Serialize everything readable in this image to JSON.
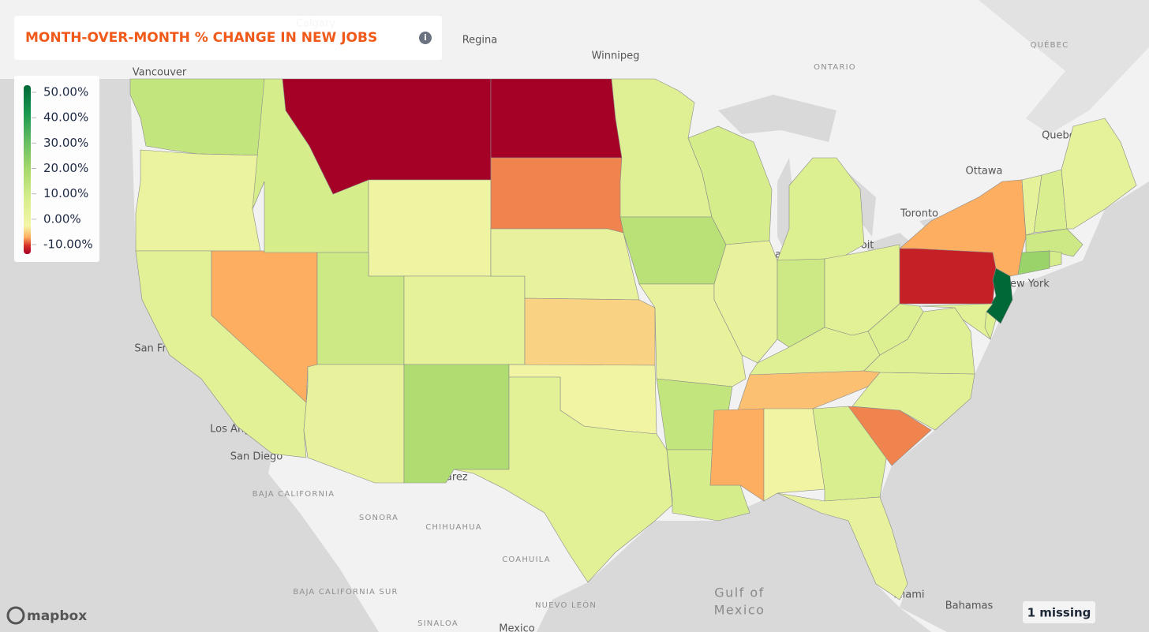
{
  "chart_data": {
    "type": "choropleth",
    "title": "MONTH-OVER-MONTH % CHANGE IN NEW JOBS",
    "values": [
      14,
      3,
      6,
      -4,
      10,
      -12,
      2,
      12,
      5,
      4,
      18,
      -12,
      -5,
      4,
      -2,
      1,
      6,
      7,
      16,
      4,
      14,
      10,
      10,
      4,
      8,
      12,
      6,
      7,
      -3,
      -4,
      1,
      9,
      4,
      -5,
      6,
      7,
      8,
      -8,
      -4,
      50,
      6,
      8,
      5,
      9,
      5,
      12,
      22,
      10
    ],
    "colorscale": [
      [
        -10,
        "#a50026"
      ],
      [
        -7,
        "#d73027"
      ],
      [
        -4,
        "#fdae61"
      ],
      [
        0,
        "#f4f6a6"
      ],
      [
        10,
        "#d6ed8c"
      ],
      [
        20,
        "#a6d96a"
      ],
      [
        30,
        "#66bd63"
      ],
      [
        40,
        "#1a9850"
      ],
      [
        50,
        "#006837"
      ]
    ],
    "clim": [
      -10,
      50
    ],
    "ticks": [
      {
        "value": 50,
        "label": "50.00%"
      },
      {
        "value": 40,
        "label": "40.00%"
      },
      {
        "value": 30,
        "label": "30.00%"
      },
      {
        "value": 20,
        "label": "20.00%"
      },
      {
        "value": 10,
        "label": "10.00%"
      },
      {
        "value": 0,
        "label": "0.00%"
      },
      {
        "value": -10,
        "label": "-10.00%"
      }
    ],
    "missing_label": "1 missing",
    "attribution": "mapbox",
    "map_labels": [
      "Calgary",
      "Regina",
      "Winnipeg",
      "Vancouver",
      "ONTARIO",
      "QUÉBEC",
      "Quebec",
      "Ottawa",
      "Toronto",
      "San Francisco",
      "Los Angeles",
      "San Diego",
      "Detroit",
      "Chicago",
      "New York",
      "Miami",
      "Ciudad Juárez",
      "BAJA CALIFORNIA",
      "SONORA",
      "CHIHUAHUA",
      "COAHUILA",
      "BAJA CALIFORNIA SUR",
      "NUEVO LEÓN",
      "SINALOA",
      "Mexico",
      "Gulf of",
      "Mexico",
      "Bahamas"
    ]
  }
}
